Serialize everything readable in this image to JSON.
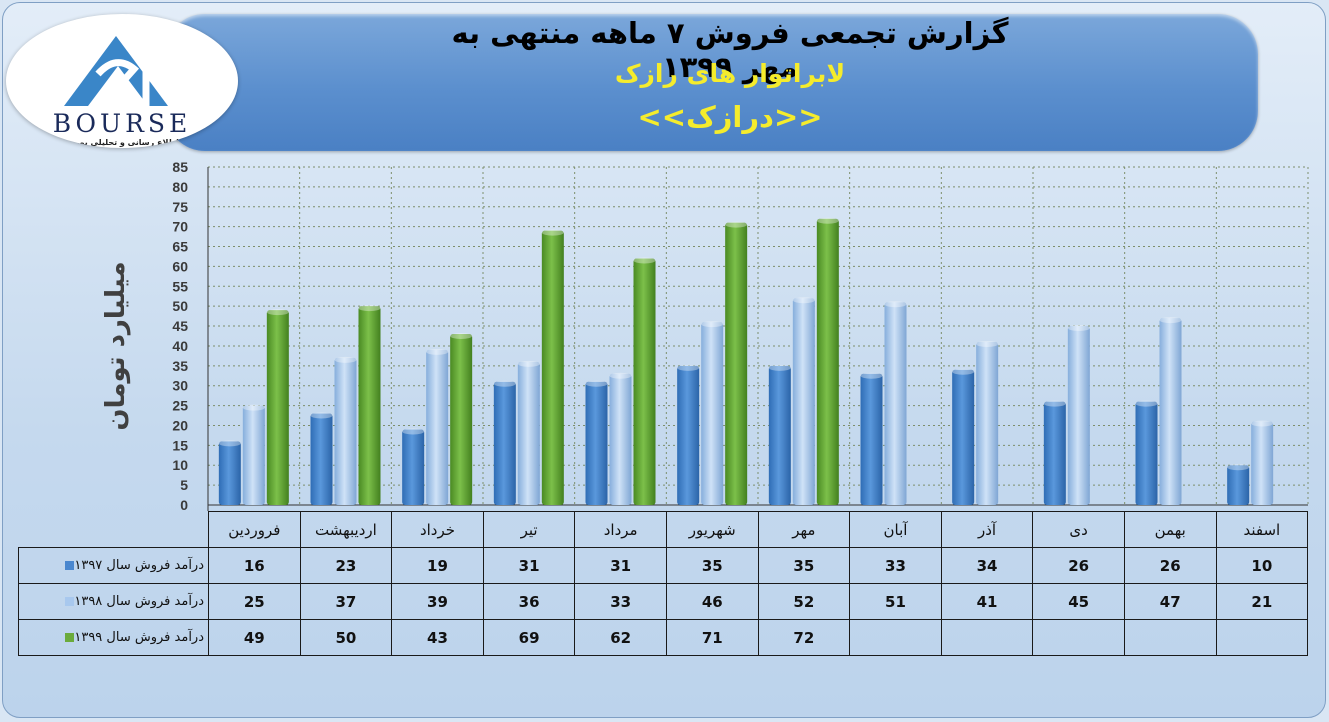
{
  "header": {
    "title": "گزارش تجمعی فروش ۷ ماهه منتهی به مهر ۱۳۹۹",
    "company": "لابراتوار های رازک",
    "ticker": "<<درازک>>"
  },
  "logo": {
    "text": "BOURSE",
    "caption": "پایگاه اطلاع رسانی و تحلیلی بورس ایران"
  },
  "colors": {
    "s1397": "#4a87cf",
    "s1398": "#a8c8ee",
    "s1399": "#6bab3c"
  },
  "chart_data": {
    "type": "bar",
    "ylabel": "میلیارد تومان",
    "ylim": [
      0,
      85
    ],
    "ytick_step": 5,
    "grid": true,
    "categories": [
      "فروردین",
      "اردیبهشت",
      "خرداد",
      "تیر",
      "مرداد",
      "شهریور",
      "مهر",
      "آبان",
      "آذر",
      "دی",
      "بهمن",
      "اسفند"
    ],
    "series": [
      {
        "name": "درآمد فروش سال ۱۳۹۷",
        "values": [
          16,
          23,
          19,
          31,
          31,
          35,
          35,
          33,
          34,
          26,
          26,
          10
        ]
      },
      {
        "name": "درآمد فروش سال ۱۳۹۸",
        "values": [
          25,
          37,
          39,
          36,
          33,
          46,
          52,
          51,
          41,
          45,
          47,
          21
        ]
      },
      {
        "name": "درآمد فروش سال ۱۳۹۹",
        "values": [
          49,
          50,
          43,
          69,
          62,
          71,
          72,
          null,
          null,
          null,
          null,
          null
        ]
      }
    ]
  }
}
